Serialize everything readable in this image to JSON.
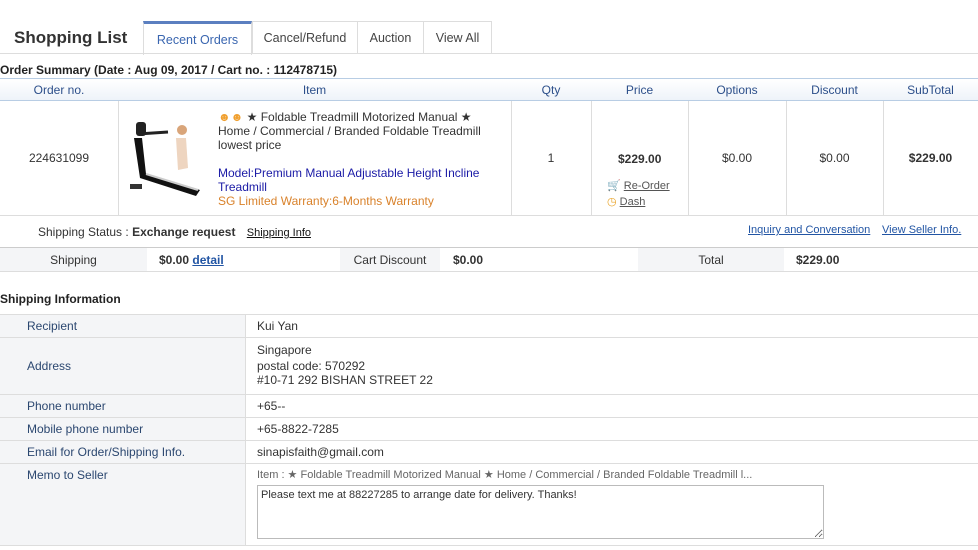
{
  "header": {
    "title": "Shopping List",
    "tabs": [
      {
        "label": "Recent Orders",
        "active": true
      },
      {
        "label": "Cancel/Refund"
      },
      {
        "label": "Auction"
      },
      {
        "label": "View All"
      }
    ]
  },
  "summary": "Order Summary (Date : Aug 09, 2017 / Cart no. : 112478715)",
  "order_table": {
    "columns": [
      "Order no.",
      "Item",
      "Qty",
      "Price",
      "Options",
      "Discount",
      "SubTotal"
    ],
    "row": {
      "order_no": "224631099",
      "item_title": "★ Foldable Treadmill Motorized Manual ★ Home / Commercial / Branded Foldable Treadmill lowest price",
      "model": "Model:Premium Manual Adjustable Height Incline Treadmill",
      "warranty": "SG Limited Warranty:6-Months Warranty",
      "qty": "1",
      "price": "$229.00",
      "reorder": "Re-Order",
      "dash": "Dash",
      "options": "$0.00",
      "discount": "$0.00",
      "subtotal": "$229.00"
    },
    "status": {
      "label": "Shipping Status : ",
      "value": "Exchange request",
      "shipping_info": "Shipping Info",
      "inquiry": "Inquiry and Conversation",
      "seller": "View Seller Info."
    },
    "totals": {
      "shipping_label": "Shipping",
      "shipping_value": "$0.00",
      "detail": "detail",
      "cart_discount_label": "Cart Discount",
      "cart_discount_value": "$0.00",
      "total_label": "Total",
      "total_value": "$229.00"
    }
  },
  "shipping": {
    "title": "Shipping Information",
    "recipient_label": "Recipient",
    "recipient": "Kui Yan",
    "address_label": "Address",
    "address_1": "Singapore",
    "address_2": "postal code: 570292",
    "address_3": "#10-71 292 BISHAN STREET 22",
    "phone_label": "Phone number",
    "phone": "+65--",
    "mobile_label": "Mobile phone number",
    "mobile": "+65-8822-7285",
    "email_label": "Email for Order/Shipping Info.",
    "email": "sinapisfaith@gmail.com",
    "memo_label": "Memo to Seller",
    "memo_item": "Item : ★ Foldable Treadmill Motorized Manual ★ Home / Commercial / Branded Foldable Treadmill l...",
    "memo": "Please text me at 88227285 to arrange date for delivery. Thanks!"
  },
  "colors": {
    "accent": "#5b7fc0",
    "model": "#1a1aa6",
    "warranty": "#d9822b"
  }
}
